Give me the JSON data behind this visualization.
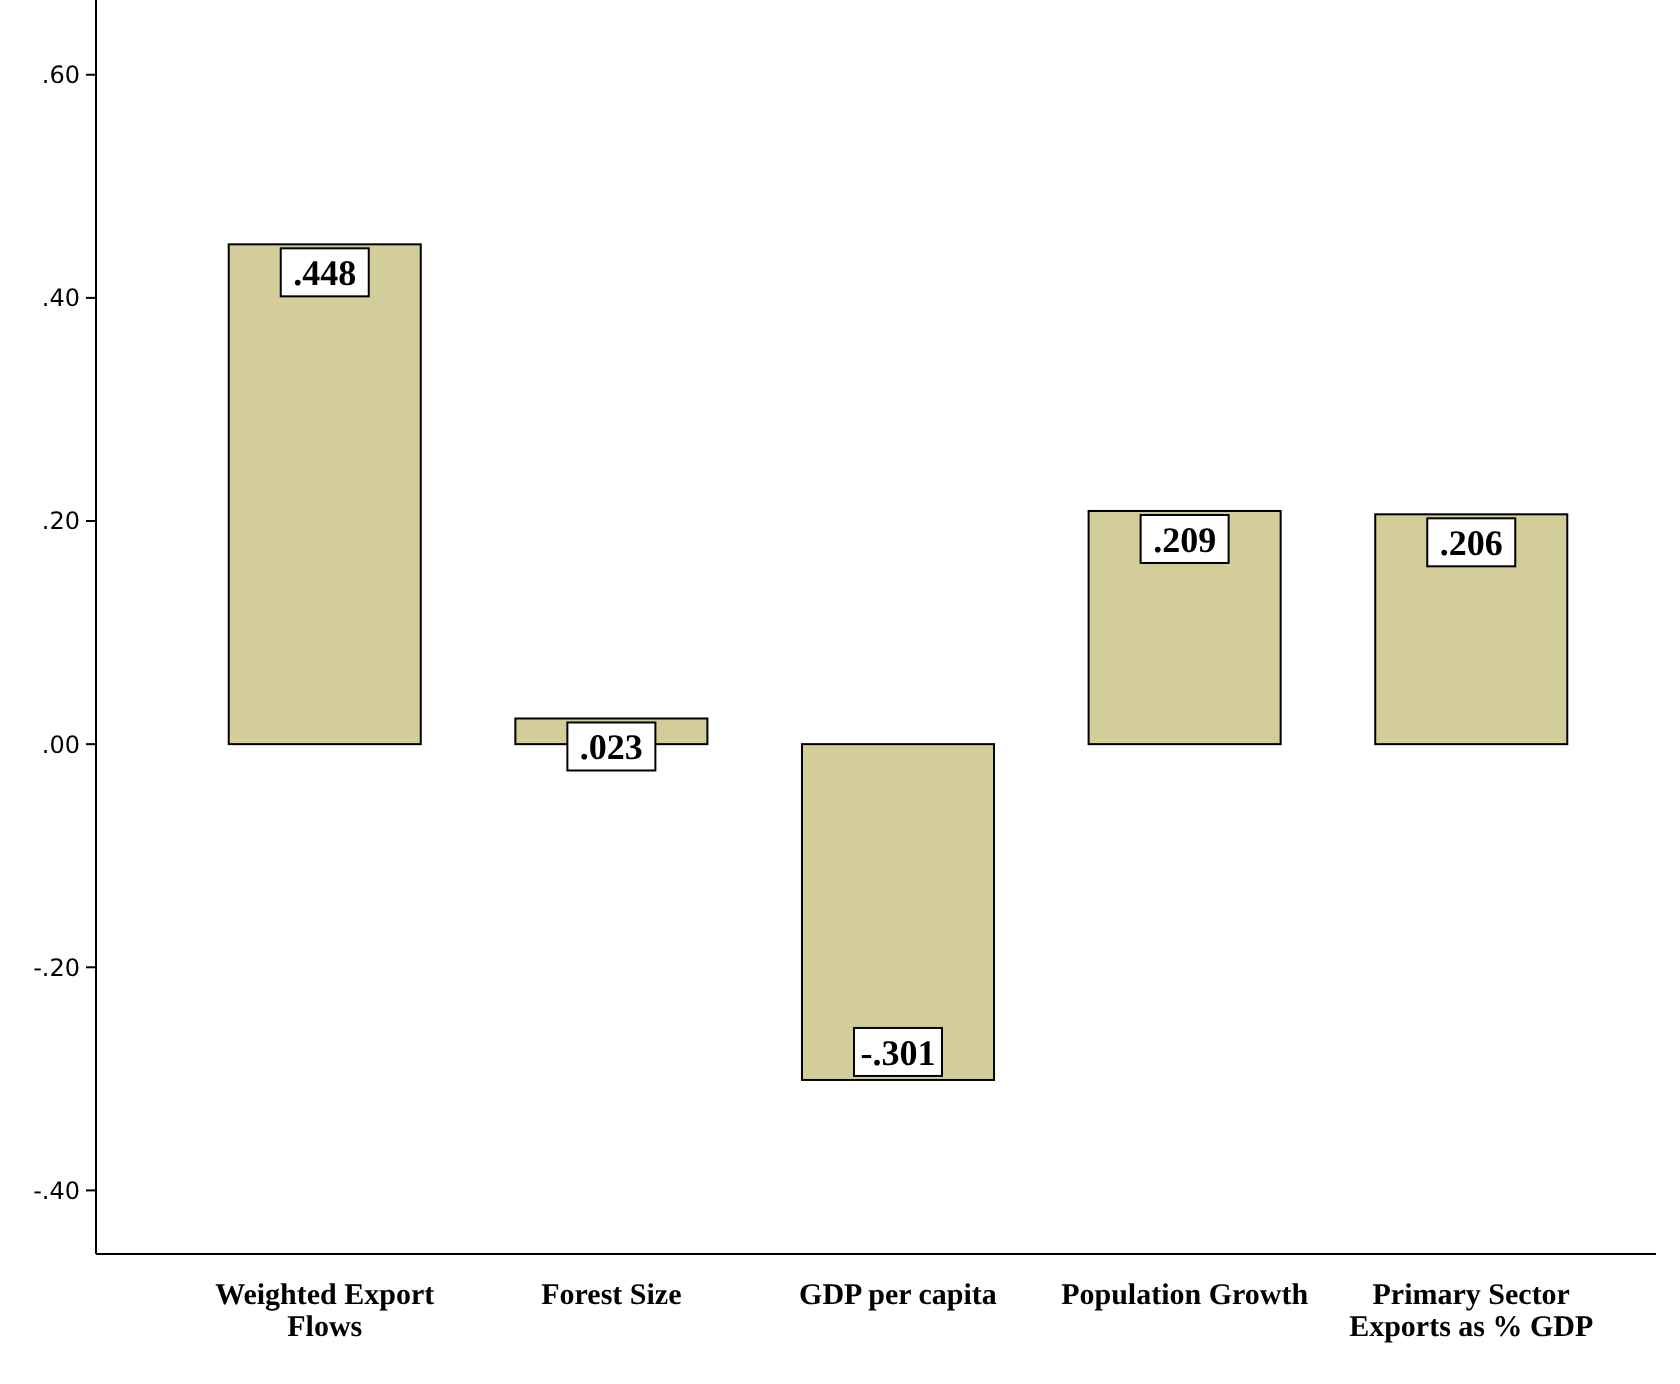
{
  "chart_data": {
    "type": "bar",
    "categories": [
      "Weighted Export Flows",
      "Forest Size",
      "GDP per capita",
      "Population Growth",
      "Primary Sector Exports as % GDP"
    ],
    "values": [
      0.448,
      0.023,
      -0.301,
      0.209,
      0.206
    ],
    "value_labels": [
      ".448",
      ".023",
      "-.301",
      ".209",
      ".206"
    ],
    "color": "#d3ce99",
    "ylim": [
      -0.457,
      0.667
    ],
    "yticks": [
      {
        "value": -0.4,
        "label": "-.40"
      },
      {
        "value": -0.2,
        "label": "-.20"
      },
      {
        "value": 0,
        "label": ".00"
      },
      {
        "value": 0.2,
        "label": ".20"
      },
      {
        "value": 0.4,
        "label": ".40"
      },
      {
        "value": 0.6,
        "label": ".60"
      }
    ],
    "grid": false
  }
}
